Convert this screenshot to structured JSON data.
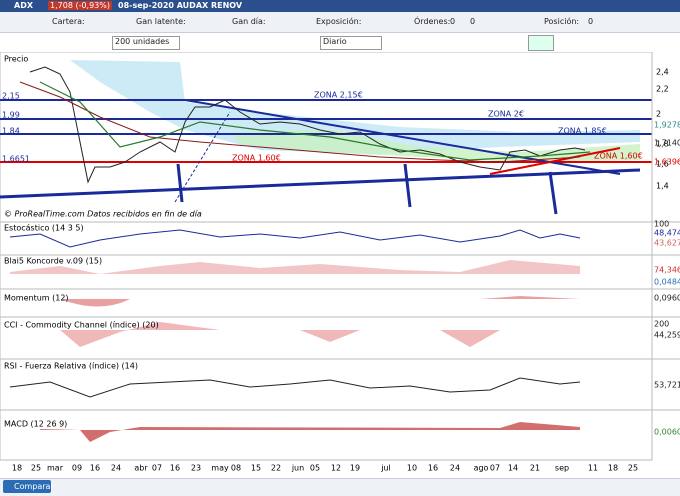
{
  "title_bar": {
    "symbol": "ADX",
    "quote": "1,708 (-0,93%)",
    "date_name": "08-sep-2020 AUDAX RENOV"
  },
  "toolbar": {
    "cartera": "Cartera:",
    "gan_latente": "Gan latente:",
    "gan_dia": "Gan día:",
    "exposicion": "Exposición:",
    "ordenes": "Órdenes:",
    "ordenes_values": [
      "0",
      "0"
    ],
    "posicion": "Posición:",
    "posicion_value": "0"
  },
  "controls": {
    "units": "200 unidades",
    "period": "Diario"
  },
  "price_panel": {
    "label": "Precio",
    "axis": [
      "2,4",
      "2,2",
      "2",
      "1,8",
      "1,6",
      "1,4"
    ],
    "left_labels": [
      "2,15",
      "1,99",
      "1,84",
      "1,6651"
    ],
    "right_labels": [
      "1,9278",
      "1,7140",
      "1,708",
      "1,6396"
    ],
    "zones": [
      "ZONA 2,15€",
      "ZONA 2€",
      "ZONA 1,85€",
      "ZONA 1,60€",
      "ZONA 1,60€"
    ],
    "credit": "© ProRealTime.com  Datos recibidos en fin de día"
  },
  "indicators": [
    {
      "label": "Estocástico (14 3 5)",
      "values": [
        "100",
        "48,474",
        "43,627"
      ]
    },
    {
      "label": "Blai5 Koncorde v.09 (15)",
      "values": [
        "74,346",
        "0,0484"
      ]
    },
    {
      "label": "Momentum (12)",
      "values": [
        "0,0960"
      ]
    },
    {
      "label": "CCI - Commodity Channel (índice) (20)",
      "values": [
        "200",
        "44,259"
      ]
    },
    {
      "label": "RSI - Fuerza Relativa (índice) (14)",
      "values": [
        "53,721"
      ]
    },
    {
      "label": "MACD (12 26 9)",
      "values": [
        "0,0060"
      ]
    }
  ],
  "x_axis": [
    "18",
    "25",
    "mar",
    "09",
    "16",
    "24",
    "abr",
    "07",
    "16",
    "23",
    "may",
    "08",
    "15",
    "22",
    "jun",
    "05",
    "12",
    "19",
    "jul",
    "10",
    "16",
    "24",
    "ago",
    "07",
    "14",
    "21",
    "sep",
    "11",
    "18",
    "25"
  ],
  "bottom": {
    "compare": "Comparar"
  }
}
